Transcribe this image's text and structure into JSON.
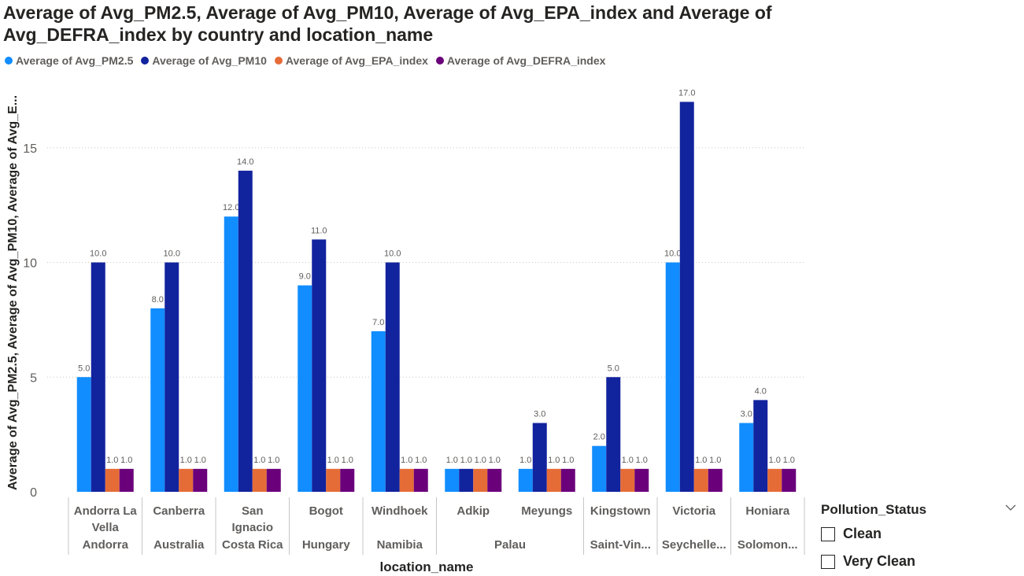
{
  "chart_data": {
    "type": "bar",
    "title": "Average of Avg_PM2.5, Average of Avg_PM10, Average of Avg_EPA_index and Average of Avg_DEFRA_index by country and location_name",
    "xlabel": "location_name",
    "ylabel": "Average of Avg_PM2.5, Average of Avg_PM10, Average of Avg_E...",
    "ylim": [
      0,
      18
    ],
    "yticks": [
      "0",
      "5",
      "10",
      "15"
    ],
    "grid": true,
    "legend_position": "top-left",
    "categories": [
      "Andorra La Vella",
      "Canberra",
      "San Ignacio",
      "Bogot",
      "Windhoek",
      "Adkip",
      "Meyungs",
      "Kingstown",
      "Victoria",
      "Honiara"
    ],
    "category_line_labels": [
      [
        "Andorra La",
        "Vella"
      ],
      [
        "Canberra"
      ],
      [
        "San",
        "Ignacio"
      ],
      [
        "Bogot"
      ],
      [
        "Windhoek"
      ],
      [
        "Adkip"
      ],
      [
        "Meyungs"
      ],
      [
        "Kingstown"
      ],
      [
        "Victoria"
      ],
      [
        "Honiara"
      ]
    ],
    "countries": [
      {
        "label": "Andorra",
        "span": [
          0,
          0
        ]
      },
      {
        "label": "Australia",
        "span": [
          1,
          1
        ]
      },
      {
        "label": "Costa Rica",
        "span": [
          2,
          2
        ]
      },
      {
        "label": "Hungary",
        "span": [
          3,
          3
        ]
      },
      {
        "label": "Namibia",
        "span": [
          4,
          4
        ]
      },
      {
        "label": "Palau",
        "span": [
          5,
          6
        ]
      },
      {
        "label": "Saint-Vin...",
        "span": [
          7,
          7
        ]
      },
      {
        "label": "Seychelle...",
        "span": [
          8,
          8
        ]
      },
      {
        "label": "Solomon...",
        "span": [
          9,
          9
        ]
      }
    ],
    "series": [
      {
        "name": "Average of Avg_PM2.5",
        "color": "#118dff",
        "values": [
          5,
          8,
          12,
          9,
          7,
          1,
          1,
          2,
          10,
          3
        ]
      },
      {
        "name": "Average of Avg_PM10",
        "color": "#12239e",
        "values": [
          10,
          10,
          14,
          11,
          10,
          1,
          3,
          5,
          17,
          4
        ]
      },
      {
        "name": "Average of Avg_EPA_index",
        "color": "#e66c37",
        "values": [
          1,
          1,
          1,
          1,
          1,
          1,
          1,
          1,
          1,
          1
        ]
      },
      {
        "name": "Average of Avg_DEFRA_index",
        "color": "#6b007b",
        "values": [
          1,
          1,
          1,
          1,
          1,
          1,
          1,
          1,
          1,
          1
        ]
      }
    ],
    "data_labels": [
      [
        "5.0",
        "8.0",
        "12.0",
        "9.0",
        "7.0",
        "1.0",
        "1.0",
        "2.0",
        "10.0",
        "3.0"
      ],
      [
        "10.0",
        "10.0",
        "14.0",
        "11.0",
        "10.0",
        "1.0",
        "3.0",
        "5.0",
        "17.0",
        "4.0"
      ],
      [
        "1.0",
        "1.0",
        "1.0",
        "1.0",
        "1.0",
        "1.0",
        "1.0",
        "1.0",
        "1.0",
        "1.0"
      ],
      [
        "1.0",
        "1.0",
        "1.0",
        "1.0",
        "1.0",
        "1.0",
        "1.0",
        "1.0",
        "1.0",
        "1.0"
      ]
    ]
  },
  "slicer": {
    "title": "Pollution_Status",
    "chevron_icon": "chevron-down-icon",
    "options": [
      "Clean",
      "Very Clean"
    ]
  }
}
